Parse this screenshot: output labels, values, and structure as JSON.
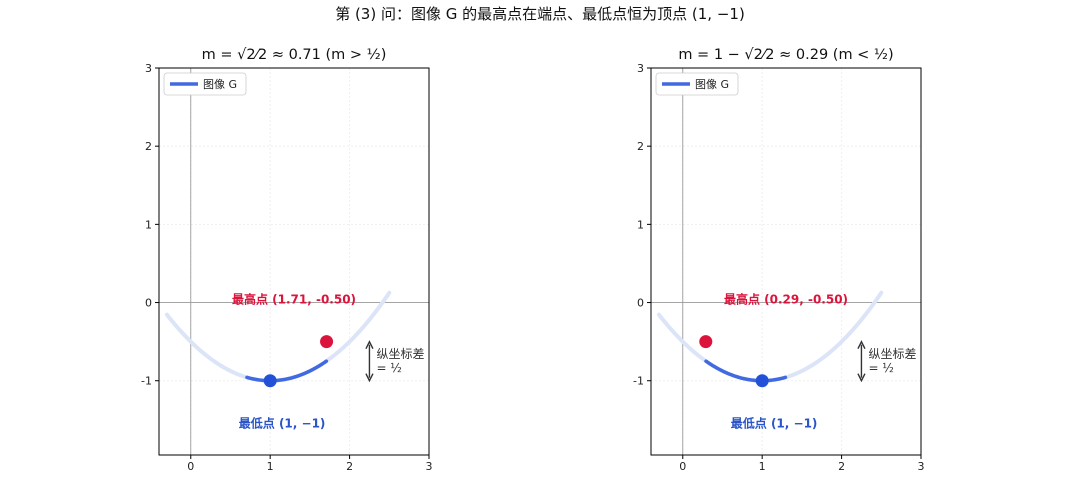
{
  "figure_title": "第 (3) 问：图像 G 的最高点在端点、最低点恒为顶点 (1, −1)",
  "chart_data": [
    {
      "type": "line",
      "title": "m = √2⁄2 ≈ 0.71  (m > ½)",
      "xlim": [
        -0.4,
        3
      ],
      "ylim": [
        -1.95,
        3
      ],
      "xticks": [
        "0",
        "1",
        "2",
        "3"
      ],
      "yticks": [
        "-1",
        "0",
        "1",
        "2",
        "3"
      ],
      "xtick_values": [
        0,
        1,
        2,
        3
      ],
      "ytick_values": [
        -1,
        0,
        1,
        2,
        3
      ],
      "grid": true,
      "legend": {
        "position": "upper-left",
        "entries": [
          "图像 G"
        ]
      },
      "colors": {
        "curve": "#4169e1",
        "faint": "#dce4f7",
        "max": "#dc143c",
        "min": "#2251d8"
      },
      "parabola": {
        "vertex": [
          1,
          -1
        ],
        "a": 0.5,
        "faint_range": [
          -0.3,
          2.5
        ]
      },
      "series": [
        {
          "name": "图像 G",
          "x_range": [
            0.7071,
            1.7071
          ]
        }
      ],
      "max_point": {
        "x": 1.71,
        "y": -0.5,
        "label": "最高点 (1.71, -0.50)"
      },
      "min_point": {
        "x": 1,
        "y": -1,
        "label": "最低点 (1, −1)"
      },
      "gap_annotation": {
        "from": -0.5,
        "to": -1,
        "line1": "纵坐标差",
        "line2": "= ½"
      }
    },
    {
      "type": "line",
      "title": "m = 1 − √2⁄2 ≈ 0.29  (m < ½)",
      "xlim": [
        -0.4,
        3
      ],
      "ylim": [
        -1.95,
        3
      ],
      "xticks": [
        "0",
        "1",
        "2",
        "3"
      ],
      "yticks": [
        "-1",
        "0",
        "1",
        "2",
        "3"
      ],
      "xtick_values": [
        0,
        1,
        2,
        3
      ],
      "ytick_values": [
        -1,
        0,
        1,
        2,
        3
      ],
      "grid": true,
      "legend": {
        "position": "upper-left",
        "entries": [
          "图像 G"
        ]
      },
      "colors": {
        "curve": "#4169e1",
        "faint": "#dce4f7",
        "max": "#dc143c",
        "min": "#2251d8"
      },
      "parabola": {
        "vertex": [
          1,
          -1
        ],
        "a": 0.5,
        "faint_range": [
          -0.3,
          2.5
        ]
      },
      "series": [
        {
          "name": "图像 G",
          "x_range": [
            0.2929,
            1.2929
          ]
        }
      ],
      "max_point": {
        "x": 0.29,
        "y": -0.5,
        "label": "最高点 (0.29, -0.50)"
      },
      "min_point": {
        "x": 1,
        "y": -1,
        "label": "最低点 (1, −1)"
      },
      "gap_annotation": {
        "from": -0.5,
        "to": -1,
        "line1": "纵坐标差",
        "line2": "= ½"
      }
    }
  ]
}
